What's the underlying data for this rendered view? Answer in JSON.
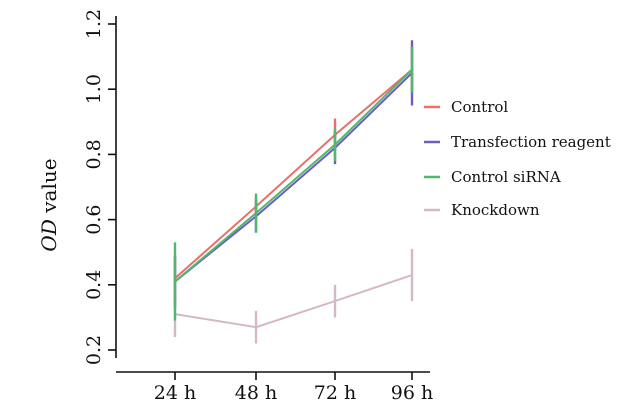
{
  "chart_data": {
    "type": "line",
    "categories": [
      "24 h",
      "48 h",
      "72 h",
      "96 h"
    ],
    "ylabel": {
      "italic_part": "OD",
      "rest": " value"
    },
    "ylim": [
      0.2,
      1.2
    ],
    "yticks": [
      0.2,
      0.4,
      0.6,
      0.8,
      1.0,
      1.2
    ],
    "ytick_labels": [
      "0.2",
      "0.4",
      "0.6",
      "0.8",
      "1.0",
      "1.2"
    ],
    "grid": false,
    "legend_position": "right",
    "series": [
      {
        "name": "Control",
        "color": "#e8706a",
        "values": [
          0.42,
          0.64,
          0.86,
          1.06
        ],
        "errors": [
          0.07,
          0.03,
          0.05,
          0.07
        ]
      },
      {
        "name": "Transfection reagent",
        "color": "#6a5fbf",
        "values": [
          0.41,
          0.61,
          0.82,
          1.05
        ],
        "errors": [
          0.08,
          0.05,
          0.05,
          0.1
        ]
      },
      {
        "name": "Control siRNA",
        "color": "#54b66c",
        "values": [
          0.41,
          0.62,
          0.83,
          1.06
        ],
        "errors": [
          0.12,
          0.06,
          0.05,
          0.07
        ]
      },
      {
        "name": "Knockdown",
        "color": "#d4b8c8",
        "values": [
          0.31,
          0.27,
          0.35,
          0.43
        ],
        "errors": [
          0.07,
          0.05,
          0.05,
          0.08
        ]
      }
    ]
  }
}
